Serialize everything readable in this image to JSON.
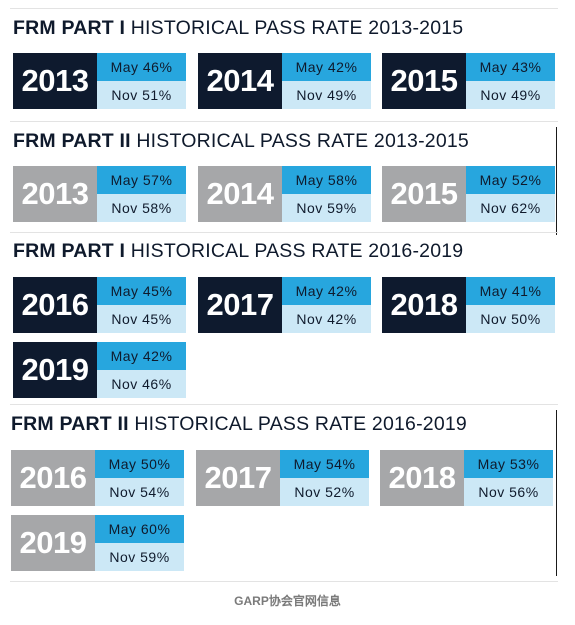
{
  "sections": [
    {
      "title_bold": "FRM PART I",
      "title_rest": " HISTORICAL PASS RATE 2013-2015",
      "cards": [
        {
          "year": "2013",
          "may": "May 46%",
          "nov": "Nov 51%"
        },
        {
          "year": "2014",
          "may": "May 42%",
          "nov": "Nov 49%"
        },
        {
          "year": "2015",
          "may": "May 43%",
          "nov": "Nov 49%"
        }
      ]
    },
    {
      "title_bold": "FRM PART II",
      "title_rest": " HISTORICAL PASS RATE 2013-2015",
      "cards": [
        {
          "year": "2013",
          "may": "May 57%",
          "nov": "Nov 58%"
        },
        {
          "year": "2014",
          "may": "May 58%",
          "nov": "Nov 59%"
        },
        {
          "year": "2015",
          "may": "May 52%",
          "nov": "Nov 62%"
        }
      ]
    },
    {
      "title_bold": "FRM PART I",
      "title_rest": " HISTORICAL PASS RATE 2016-2019",
      "cards": [
        {
          "year": "2016",
          "may": "May 45%",
          "nov": "Nov 45%"
        },
        {
          "year": "2017",
          "may": "May 42%",
          "nov": "Nov 42%"
        },
        {
          "year": "2018",
          "may": "May 41%",
          "nov": "Nov 50%"
        },
        {
          "year": "2019",
          "may": "May 42%",
          "nov": "Nov 46%"
        }
      ]
    },
    {
      "title_bold": "FRM PART II",
      "title_rest": " HISTORICAL PASS RATE 2016-2019",
      "cards": [
        {
          "year": "2016",
          "may": "May 50%",
          "nov": "Nov 54%"
        },
        {
          "year": "2017",
          "may": "May 54%",
          "nov": "Nov 52%"
        },
        {
          "year": "2018",
          "may": "May 53%",
          "nov": "Nov 56%"
        },
        {
          "year": "2019",
          "may": "May 60%",
          "nov": "Nov 59%"
        }
      ]
    }
  ],
  "footer": "GARP协会官网信息",
  "colors": {
    "dark_year": "#0e1a2e",
    "gray_year": "#a6a7a9",
    "may_bg": "#27a6de",
    "nov_bg": "#cce8f6"
  }
}
